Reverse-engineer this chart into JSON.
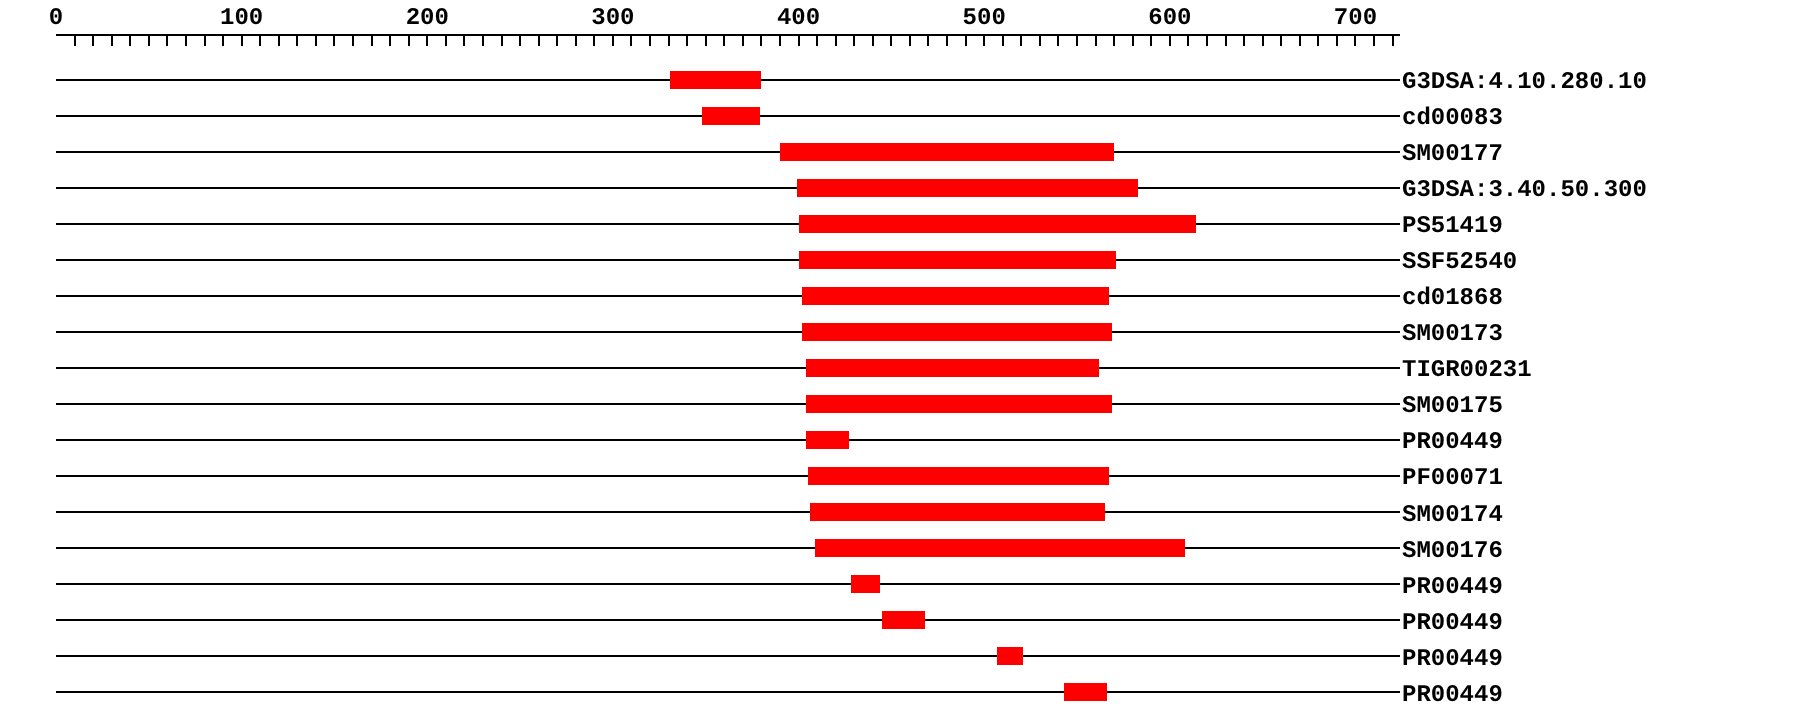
{
  "chart_data": {
    "type": "bar",
    "orientation": "horizontal",
    "categories": [
      "G3DSA:4.10.280.10",
      "cd00083",
      "SM00177",
      "G3DSA:3.40.50.300",
      "PS51419",
      "SSF52540",
      "cd01868",
      "SM00173",
      "TIGR00231",
      "SM00175",
      "PR00449",
      "PF00071",
      "SM00174",
      "SM00176",
      "PR00449",
      "PR00449",
      "PR00449",
      "PR00449"
    ],
    "base": [
      331,
      348,
      390,
      399,
      400,
      400,
      402,
      402,
      404,
      404,
      404,
      405,
      406,
      409,
      428,
      445,
      507,
      543
    ],
    "values": [
      49,
      31,
      180,
      184,
      214,
      171,
      165,
      167,
      158,
      165,
      23,
      162,
      159,
      199,
      16,
      23,
      14,
      23
    ],
    "color": "#ff0000",
    "xlim": [
      0,
      724
    ],
    "xticks": [
      0,
      {
        "value": 10,
        "label": null
      },
      {
        "value": 20,
        "label": null
      },
      {
        "value": 30,
        "label": null
      },
      {
        "value": 40,
        "label": null
      },
      {
        "value": 50,
        "label": null
      },
      {
        "value": 60,
        "label": null
      },
      {
        "value": 70,
        "label": null
      },
      {
        "value": 80,
        "label": null
      },
      {
        "value": 90,
        "label": null
      },
      100,
      {
        "value": 110,
        "label": null
      },
      {
        "value": 120,
        "label": null
      },
      {
        "value": 130,
        "label": null
      },
      {
        "value": 140,
        "label": null
      },
      {
        "value": 150,
        "label": null
      },
      {
        "value": 160,
        "label": null
      },
      {
        "value": 170,
        "label": null
      },
      {
        "value": 180,
        "label": null
      },
      {
        "value": 190,
        "label": null
      },
      200,
      {
        "value": 210,
        "label": null
      },
      {
        "value": 220,
        "label": null
      },
      {
        "value": 230,
        "label": null
      },
      {
        "value": 240,
        "label": null
      },
      {
        "value": 250,
        "label": null
      },
      {
        "value": 260,
        "label": null
      },
      {
        "value": 270,
        "label": null
      },
      {
        "value": 280,
        "label": null
      },
      {
        "value": 290,
        "label": null
      },
      300,
      {
        "value": 310,
        "label": null
      },
      {
        "value": 320,
        "label": null
      },
      {
        "value": 330,
        "label": null
      },
      {
        "value": 340,
        "label": null
      },
      {
        "value": 350,
        "label": null
      },
      {
        "value": 360,
        "label": null
      },
      {
        "value": 370,
        "label": null
      },
      {
        "value": 380,
        "label": null
      },
      {
        "value": 390,
        "label": null
      },
      400,
      {
        "value": 410,
        "label": null
      },
      {
        "value": 420,
        "label": null
      },
      {
        "value": 430,
        "label": null
      },
      {
        "value": 440,
        "label": null
      },
      {
        "value": 450,
        "label": null
      },
      {
        "value": 460,
        "label": null
      },
      {
        "value": 470,
        "label": null
      },
      {
        "value": 480,
        "label": null
      },
      {
        "value": 490,
        "label": null
      },
      500,
      {
        "value": 510,
        "label": null
      },
      {
        "value": 520,
        "label": null
      },
      {
        "value": 530,
        "label": null
      },
      {
        "value": 540,
        "label": null
      },
      {
        "value": 550,
        "label": null
      },
      {
        "value": 560,
        "label": null
      },
      {
        "value": 570,
        "label": null
      },
      {
        "value": 580,
        "label": null
      },
      {
        "value": 590,
        "label": null
      },
      600,
      {
        "value": 610,
        "label": null
      },
      {
        "value": 620,
        "label": null
      },
      {
        "value": 630,
        "label": null
      },
      {
        "value": 640,
        "label": null
      },
      {
        "value": 650,
        "label": null
      },
      {
        "value": 660,
        "label": null
      },
      {
        "value": 670,
        "label": null
      },
      {
        "value": 680,
        "label": null
      },
      {
        "value": 690,
        "label": null
      },
      700,
      {
        "value": 710,
        "label": null
      },
      {
        "value": 720,
        "label": null
      }
    ],
    "grid": "y"
  }
}
